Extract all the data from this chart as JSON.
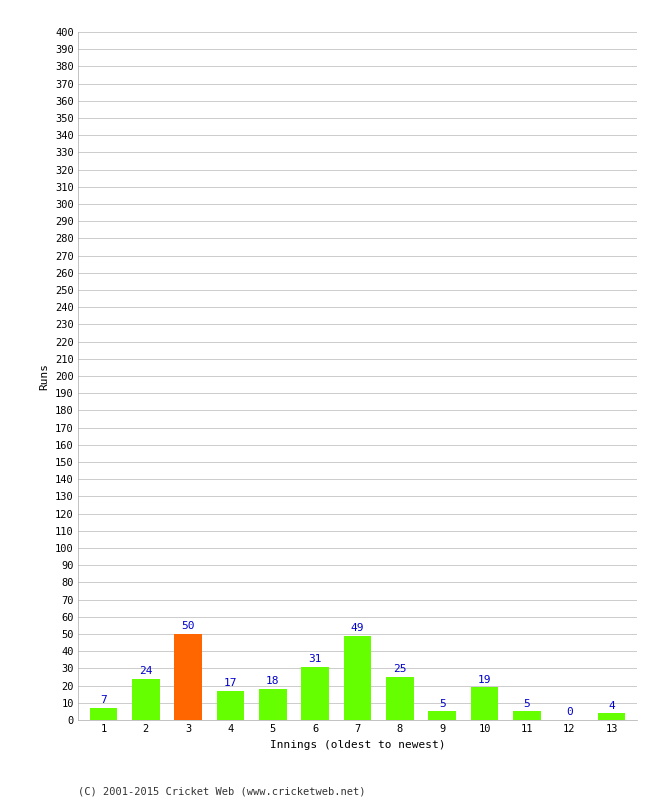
{
  "xlabel": "Innings (oldest to newest)",
  "ylabel": "Runs",
  "categories": [
    1,
    2,
    3,
    4,
    5,
    6,
    7,
    8,
    9,
    10,
    11,
    12,
    13
  ],
  "values": [
    7,
    24,
    50,
    17,
    18,
    31,
    49,
    25,
    5,
    19,
    5,
    0,
    4
  ],
  "bar_colors": [
    "#66ff00",
    "#66ff00",
    "#ff6600",
    "#66ff00",
    "#66ff00",
    "#66ff00",
    "#66ff00",
    "#66ff00",
    "#66ff00",
    "#66ff00",
    "#66ff00",
    "#66ff00",
    "#66ff00"
  ],
  "ylim": [
    0,
    400
  ],
  "yticks": [
    0,
    10,
    20,
    30,
    40,
    50,
    60,
    70,
    80,
    90,
    100,
    110,
    120,
    130,
    140,
    150,
    160,
    170,
    180,
    190,
    200,
    210,
    220,
    230,
    240,
    250,
    260,
    270,
    280,
    290,
    300,
    310,
    320,
    330,
    340,
    350,
    360,
    370,
    380,
    390,
    400
  ],
  "background_color": "#ffffff",
  "grid_color": "#cccccc",
  "label_color": "#0000cc",
  "footer": "(C) 2001-2015 Cricket Web (www.cricketweb.net)",
  "bar_edge_color": "#000000"
}
